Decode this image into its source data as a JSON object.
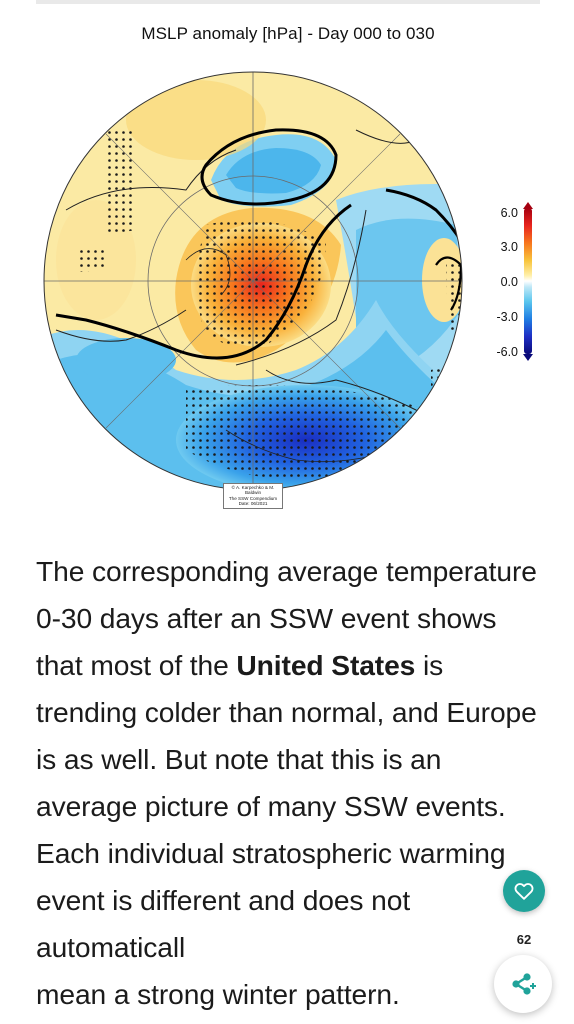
{
  "figure": {
    "title": "MSLP anomaly [hPa] - Day 000 to 030",
    "colorbar_labels": [
      "6.0",
      "3.0",
      "0.0",
      "-3.0",
      "-6.0"
    ],
    "colorbar_colors": [
      "#a50010",
      "#f7761d",
      "#ffffff",
      "#1f7ee3",
      "#0a0a7a"
    ],
    "credit_lines": [
      "© A. Karpechko & M. Baldwin",
      "The SSW Compendium",
      "Date: 06/2021"
    ]
  },
  "article": {
    "part1": "The corresponding average temperature 0-30 days after an SSW event shows that most of the ",
    "bold": "United States",
    "part2": " is trending colder than normal, and Europe is as well. But note that this is an average picture of many SSW events. Each individual stratospheric warming event is different and does not automaticall",
    "part3": "mean a strong winter pattern."
  },
  "actions": {
    "like_icon": "heart-icon",
    "like_count": "62",
    "share_icon": "share-icon",
    "accent_color": "#20a39a"
  }
}
